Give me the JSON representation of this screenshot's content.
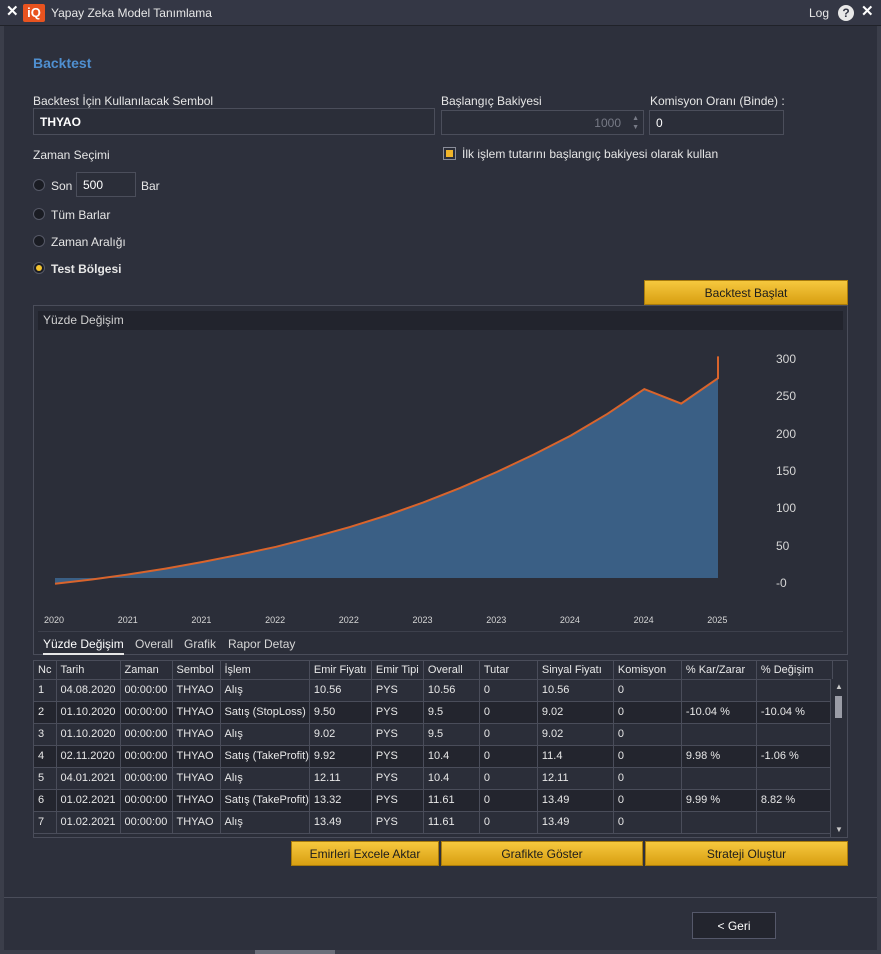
{
  "window": {
    "title": "Yapay Zeka Model Tanımlama",
    "logo": "iQ",
    "log_label": "Log",
    "help_icon": "?",
    "close_icon": "✕"
  },
  "section_title": "Backtest",
  "symbol": {
    "label": "Backtest İçin Kullanılacak Sembol",
    "value": "THYAO"
  },
  "balance": {
    "label": "Başlangıç Bakiyesi",
    "value": "1000"
  },
  "commission": {
    "label": "Komisyon Oranı (Binde) :",
    "value": "0"
  },
  "first_trade_checkbox": {
    "label": "İlk işlem tutarını başlangıç bakiyesi olarak kullan",
    "checked": true
  },
  "time": {
    "label": "Zaman Seçimi",
    "options": [
      {
        "label": "Son",
        "selected": false
      },
      {
        "label": "Tüm Barlar",
        "selected": false
      },
      {
        "label": "Zaman Aralığı",
        "selected": false
      },
      {
        "label": "Test Bölgesi",
        "selected": true
      }
    ],
    "bar_count": "500",
    "bar_unit": "Bar"
  },
  "start_button": "Backtest Başlat",
  "chart_panel": {
    "header": "Yüzde Değişim",
    "tabs": [
      "Yüzde Değişim",
      "Overall",
      "Grafik",
      "Rapor Detay"
    ]
  },
  "chart_data": {
    "type": "area",
    "x_tick_labels": [
      "2020",
      "2021",
      "2021",
      "2022",
      "2022",
      "2023",
      "2023",
      "2024",
      "2024",
      "2025"
    ],
    "y_tick_labels": [
      "300",
      "250",
      "200",
      "150",
      "100",
      "50",
      "-0"
    ],
    "ylim": [
      0,
      300
    ],
    "series": [
      {
        "x": [
          0,
          0.5,
          1,
          1.5,
          2,
          2.5,
          3,
          3.5,
          4,
          4.5,
          5,
          5.5,
          6,
          6.5,
          7,
          7.5,
          8,
          8.5,
          9
        ],
        "y": [
          -8,
          -2,
          5,
          13,
          22,
          32,
          43,
          56,
          70,
          86,
          104,
          124,
          146,
          170,
          196,
          226,
          260,
          240,
          275
        ]
      }
    ],
    "series_end": {
      "x": 9,
      "y": 305
    },
    "fill_color": "#3a5f85",
    "line_color": "#d9642c",
    "grid": false
  },
  "table": {
    "columns": [
      "Nc",
      "Tarih",
      "Zaman",
      "Sembol",
      "İşlem",
      "Emir Fiyatı",
      "Emir Tipi",
      "Overall",
      "Tutar",
      "Sinyal Fiyatı",
      "Komisyon",
      "% Kar/Zarar",
      "% Değişim"
    ],
    "rows": [
      [
        "1",
        "04.08.2020",
        "00:00:00",
        "THYAO",
        "Alış",
        "10.56",
        "PYS",
        "10.56",
        "0",
        "10.56",
        "0",
        "",
        ""
      ],
      [
        "2",
        "01.10.2020",
        "00:00:00",
        "THYAO",
        "Satış (StopLoss)",
        "9.50",
        "PYS",
        "9.5",
        "0",
        "9.02",
        "0",
        "-10.04 %",
        "-10.04 %"
      ],
      [
        "3",
        "01.10.2020",
        "00:00:00",
        "THYAO",
        "Alış",
        "9.02",
        "PYS",
        "9.5",
        "0",
        "9.02",
        "0",
        "",
        ""
      ],
      [
        "4",
        "02.11.2020",
        "00:00:00",
        "THYAO",
        "Satış (TakeProfit)",
        "9.92",
        "PYS",
        "10.4",
        "0",
        "11.4",
        "0",
        "9.98 %",
        "-1.06 %"
      ],
      [
        "5",
        "04.01.2021",
        "00:00:00",
        "THYAO",
        "Alış",
        "12.11",
        "PYS",
        "10.4",
        "0",
        "12.11",
        "0",
        "",
        ""
      ],
      [
        "6",
        "01.02.2021",
        "00:00:00",
        "THYAO",
        "Satış (TakeProfit)",
        "13.32",
        "PYS",
        "11.61",
        "0",
        "13.49",
        "0",
        "9.99 %",
        "8.82 %"
      ],
      [
        "7",
        "01.02.2021",
        "00:00:00",
        "THYAO",
        "Alış",
        "13.49",
        "PYS",
        "11.61",
        "0",
        "13.49",
        "0",
        "",
        ""
      ]
    ]
  },
  "actions": {
    "export": "Emirleri Excele Aktar",
    "show_chart": "Grafikte Göster",
    "create_strategy": "Strateji Oluştur"
  },
  "back_button": "< Geri"
}
